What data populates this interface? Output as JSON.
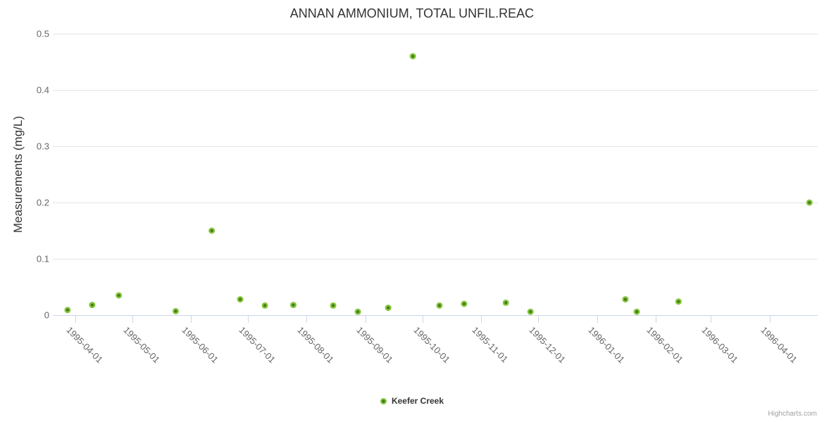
{
  "page": {
    "title": "ANNAN AMMONIUM, TOTAL UNFIL.REAC",
    "y_axis_title": "Measurements (mg/L)",
    "legend": {
      "series_label": "Keefer Creek"
    },
    "credits": "Highcharts.com"
  },
  "colors": {
    "marker": "#86c43a",
    "marker_center": "#3e7a1a",
    "grid": "#e6e6e6",
    "axis": "#ccd6eb",
    "tick_label": "#666666",
    "title": "#333333",
    "credits": "#a0a0a0"
  },
  "chart_data": {
    "type": "scatter",
    "title": "ANNAN AMMONIUM, TOTAL UNFIL.REAC",
    "xlabel": "",
    "ylabel": "Measurements (mg/L)",
    "ylim": [
      0,
      0.5
    ],
    "y_ticks": [
      0,
      0.1,
      0.2,
      0.3,
      0.4,
      0.5
    ],
    "x_tick_labels": [
      "1995-04-01",
      "1995-05-01",
      "1995-06-01",
      "1995-07-01",
      "1995-08-01",
      "1995-09-01",
      "1995-10-01",
      "1995-11-01",
      "1995-12-01",
      "1996-01-01",
      "1996-02-01",
      "1996-03-01",
      "1996-04-01"
    ],
    "grid": true,
    "legend_position": "bottom-center",
    "series": [
      {
        "name": "Keefer Creek",
        "color": "#86c43a",
        "points": [
          {
            "date": "1995-03-28",
            "value": 0.009
          },
          {
            "date": "1995-04-10",
            "value": 0.018
          },
          {
            "date": "1995-04-24",
            "value": 0.035
          },
          {
            "date": "1995-05-24",
            "value": 0.007
          },
          {
            "date": "1995-06-12",
            "value": 0.15
          },
          {
            "date": "1995-06-27",
            "value": 0.028
          },
          {
            "date": "1995-07-10",
            "value": 0.017
          },
          {
            "date": "1995-07-25",
            "value": 0.018
          },
          {
            "date": "1995-08-15",
            "value": 0.017
          },
          {
            "date": "1995-08-28",
            "value": 0.006
          },
          {
            "date": "1995-09-13",
            "value": 0.013
          },
          {
            "date": "1995-09-26",
            "value": 0.46
          },
          {
            "date": "1995-10-10",
            "value": 0.017
          },
          {
            "date": "1995-10-23",
            "value": 0.02
          },
          {
            "date": "1995-11-14",
            "value": 0.022
          },
          {
            "date": "1995-11-27",
            "value": 0.006
          },
          {
            "date": "1996-01-16",
            "value": 0.028
          },
          {
            "date": "1996-01-22",
            "value": 0.006
          },
          {
            "date": "1996-02-13",
            "value": 0.024
          },
          {
            "date": "1996-04-22",
            "value": 0.2
          }
        ]
      }
    ]
  }
}
